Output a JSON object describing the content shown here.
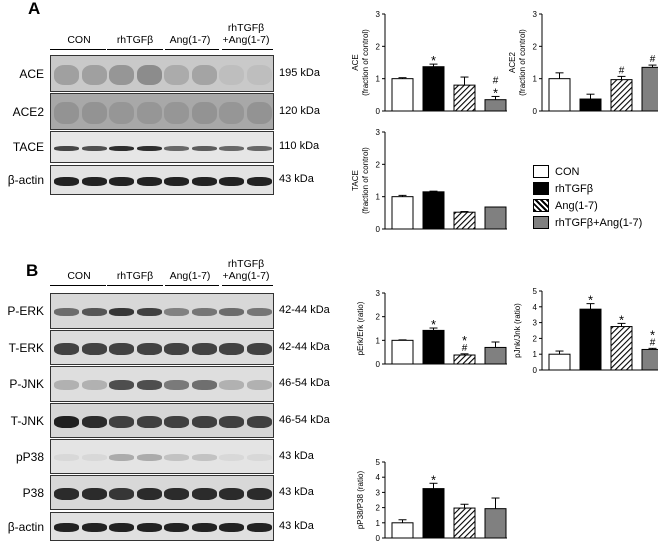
{
  "panels": {
    "a": {
      "letter": "A"
    },
    "b": {
      "letter": "B"
    }
  },
  "groups": [
    "CON",
    "rhTGFβ",
    "Ang(1-7)",
    "rhTGFβ\n+Ang(1-7)"
  ],
  "groups_b": [
    "CON",
    "rhTGFβ",
    "Ang(1-7)",
    "rhTGFβ\n+Ang(1-7)"
  ],
  "blots_a": [
    {
      "label": "ACE",
      "mw": "195 kDa"
    },
    {
      "label": "ACE2",
      "mw": "120 kDa"
    },
    {
      "label": "TACE",
      "mw": "110 kDa"
    },
    {
      "label": "β-actin",
      "mw": "43 kDa"
    }
  ],
  "blots_b": [
    {
      "label": "P-ERK",
      "mw": "42-44 kDa"
    },
    {
      "label": "T-ERK",
      "mw": "42-44 kDa"
    },
    {
      "label": "P-JNK",
      "mw": "46-54 kDa"
    },
    {
      "label": "T-JNK",
      "mw": "46-54 kDa"
    },
    {
      "label": "pP38",
      "mw": "43 kDa"
    },
    {
      "label": "P38",
      "mw": "43 kDa"
    },
    {
      "label": "β-actin",
      "mw": "43 kDa"
    }
  ],
  "legend": [
    {
      "label": "CON",
      "fill": "white"
    },
    {
      "label": "rhTGFβ",
      "fill": "black"
    },
    {
      "label": "Ang(1-7)",
      "fill": "hatch"
    },
    {
      "label": "rhTGFβ+Ang(1-7)",
      "fill": "gray"
    }
  ],
  "colors": {
    "con": "#ffffff",
    "tgf": "#000000",
    "ang": "hatch",
    "combo": "#808080"
  },
  "chart_data": [
    {
      "type": "bar",
      "id": "ace",
      "ylabel": "ACE\n(fraction of control)",
      "ylim": [
        0,
        3
      ],
      "yticks": [
        0,
        1,
        2,
        3
      ],
      "values": [
        1.0,
        1.37,
        0.8,
        0.35
      ],
      "errors": [
        0.03,
        0.08,
        0.25,
        0.1
      ],
      "marks": [
        "",
        "*",
        "",
        "#\n*"
      ]
    },
    {
      "type": "bar",
      "id": "ace2",
      "ylabel": "ACE2\n(fraction of control)",
      "ylim": [
        0,
        3
      ],
      "yticks": [
        0,
        1,
        2,
        3
      ],
      "values": [
        1.0,
        0.37,
        0.97,
        1.35
      ],
      "errors": [
        0.18,
        0.15,
        0.1,
        0.07
      ],
      "marks": [
        "",
        "",
        "#",
        "#"
      ]
    },
    {
      "type": "bar",
      "id": "tace",
      "ylabel": "TACE\n(fraction of control)",
      "ylim": [
        0,
        3
      ],
      "yticks": [
        0,
        1,
        2,
        3
      ],
      "values": [
        1.0,
        1.15,
        0.52,
        0.68
      ],
      "errors": [
        0.04,
        0.02,
        0.02,
        0.0
      ],
      "marks": [
        "",
        "",
        "",
        ""
      ]
    },
    {
      "type": "bar",
      "id": "perk",
      "ylabel": "pErk/Erk (ratio)",
      "ylim": [
        0,
        3
      ],
      "yticks": [
        0,
        1,
        2,
        3
      ],
      "values": [
        1.0,
        1.42,
        0.38,
        0.7
      ],
      "errors": [
        0.02,
        0.1,
        0.05,
        0.23
      ],
      "marks": [
        "",
        "*",
        "*\n#",
        ""
      ]
    },
    {
      "type": "bar",
      "id": "pjnk",
      "ylabel": "pJnk/Jnk (ratio)",
      "ylim": [
        0,
        5
      ],
      "yticks": [
        0,
        1,
        2,
        3,
        4,
        5
      ],
      "values": [
        1.0,
        3.85,
        2.75,
        1.3
      ],
      "errors": [
        0.2,
        0.35,
        0.2,
        0.07
      ],
      "marks": [
        "",
        "*",
        "*",
        "*\n#"
      ]
    },
    {
      "type": "bar",
      "id": "pp38",
      "ylabel": "pP38/P38 (ratio)",
      "ylim": [
        0,
        5
      ],
      "yticks": [
        0,
        1,
        2,
        3,
        4,
        5
      ],
      "values": [
        1.0,
        3.25,
        1.97,
        1.93
      ],
      "errors": [
        0.2,
        0.35,
        0.25,
        0.7
      ],
      "marks": [
        "",
        "*",
        "",
        ""
      ]
    }
  ]
}
